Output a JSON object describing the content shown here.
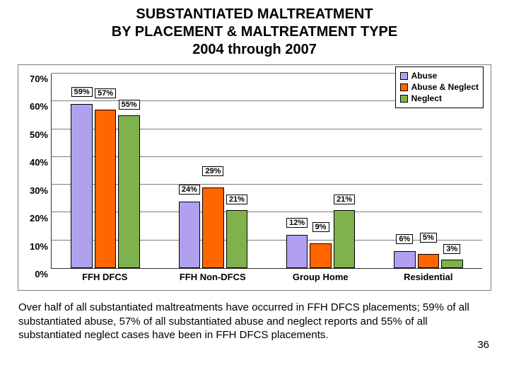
{
  "title": {
    "line1": "SUBSTANTIATED MALTREATMENT",
    "line2": "BY PLACEMENT & MALTREATMENT TYPE",
    "line3": "2004 through 2007",
    "fontsize": 20
  },
  "chart": {
    "type": "bar",
    "ylim": [
      0,
      70
    ],
    "yticks": [
      0,
      10,
      20,
      30,
      40,
      50,
      60,
      70
    ],
    "ytick_format_percent": true,
    "grid_color": "#7c7c7c",
    "axis_color": "#333333",
    "frame_border_color": "#7f7f7f",
    "background_color": "#ffffff",
    "tick_fontsize": 13,
    "datalabel_fontsize": 11,
    "categories": [
      "FFH DFCS",
      "FFH Non-DFCS",
      "Group Home",
      "Residential"
    ],
    "series": [
      {
        "name": "Abuse",
        "color": "#b1a0f0",
        "values": [
          59,
          24,
          12,
          6
        ]
      },
      {
        "name": "Abuse & Neglect",
        "color": "#ff6600",
        "values": [
          57,
          29,
          9,
          5
        ]
      },
      {
        "name": "Neglect",
        "color": "#7fb24d",
        "values": [
          55,
          21,
          21,
          3
        ]
      }
    ],
    "group_width_pct": 16,
    "bar_gap_pct": 0.5
  },
  "legend": {
    "position": "top-right",
    "items": [
      {
        "label": "Abuse",
        "color": "#b1a0f0"
      },
      {
        "label": "Abuse & Neglect",
        "color": "#ff6600"
      },
      {
        "label": "Neglect",
        "color": "#7fb24d"
      }
    ]
  },
  "caption": "Over half of all substantiated maltreatments have occurred in FFH DFCS placements; 59% of all substantiated abuse, 57% of all substantiated abuse and neglect reports and 55% of all substantiated neglect cases have been in FFH DFCS placements.",
  "page_number": "36"
}
